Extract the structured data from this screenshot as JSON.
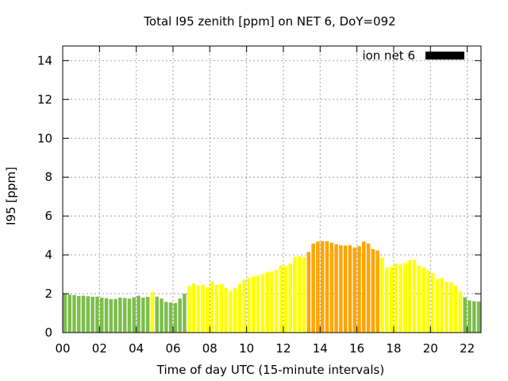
{
  "chart_data": {
    "type": "bar",
    "title": "Total I95 zenith [ppm] on NET 6, DoY=092",
    "xlabel": "Time of day UTC (15-minute intervals)",
    "ylabel": "I95 [ppm]",
    "xlim": [
      0,
      22.75
    ],
    "ylim": [
      0,
      14.75
    ],
    "x_tick_labels": [
      "00",
      "02",
      "04",
      "06",
      "08",
      "10",
      "12",
      "14",
      "16",
      "18",
      "20",
      "22"
    ],
    "y_tick_labels": [
      "0",
      "2",
      "4",
      "6",
      "8",
      "10",
      "12",
      "14"
    ],
    "grid": true,
    "legend": {
      "label": "ion net 6",
      "placement": "top-right",
      "color": "#000000"
    },
    "colors": {
      "green": "#7dbd4c",
      "yellow": "#ffff00",
      "orange": "#ffa500"
    },
    "interval_hours": 0.25,
    "values": [
      2.0,
      1.95,
      1.93,
      1.88,
      1.9,
      1.87,
      1.84,
      1.85,
      1.8,
      1.77,
      1.72,
      1.73,
      1.8,
      1.78,
      1.75,
      1.82,
      1.9,
      1.8,
      1.84,
      2.1,
      1.85,
      1.75,
      1.58,
      1.55,
      1.52,
      1.75,
      2.0,
      2.38,
      2.52,
      2.42,
      2.45,
      2.33,
      2.62,
      2.45,
      2.5,
      2.3,
      2.15,
      2.3,
      2.5,
      2.72,
      2.82,
      2.88,
      2.93,
      3.02,
      3.1,
      3.15,
      3.22,
      3.45,
      3.42,
      3.55,
      3.9,
      3.92,
      3.88,
      4.15,
      4.58,
      4.68,
      4.7,
      4.7,
      4.62,
      4.55,
      4.5,
      4.48,
      4.5,
      4.38,
      4.45,
      4.68,
      4.58,
      4.3,
      4.22,
      3.85,
      3.35,
      3.38,
      3.55,
      3.5,
      3.58,
      3.72,
      3.75,
      3.45,
      3.35,
      3.2,
      3.05,
      2.75,
      2.82,
      2.62,
      2.58,
      2.42,
      2.12,
      1.82,
      1.65,
      1.62,
      1.6
    ],
    "levels": [
      "g",
      "g",
      "g",
      "g",
      "g",
      "g",
      "g",
      "g",
      "g",
      "g",
      "g",
      "g",
      "g",
      "g",
      "g",
      "g",
      "g",
      "g",
      "g",
      "y",
      "g",
      "g",
      "g",
      "g",
      "g",
      "g",
      "g",
      "y",
      "y",
      "y",
      "y",
      "y",
      "y",
      "y",
      "y",
      "y",
      "y",
      "y",
      "y",
      "y",
      "y",
      "y",
      "y",
      "y",
      "y",
      "y",
      "y",
      "y",
      "y",
      "y",
      "y",
      "y",
      "y",
      "o",
      "o",
      "o",
      "o",
      "o",
      "o",
      "o",
      "o",
      "o",
      "o",
      "o",
      "o",
      "o",
      "o",
      "o",
      "o",
      "y",
      "y",
      "y",
      "y",
      "y",
      "y",
      "y",
      "y",
      "y",
      "y",
      "y",
      "y",
      "y",
      "y",
      "y",
      "y",
      "y",
      "y",
      "g",
      "g",
      "g",
      "g"
    ]
  }
}
